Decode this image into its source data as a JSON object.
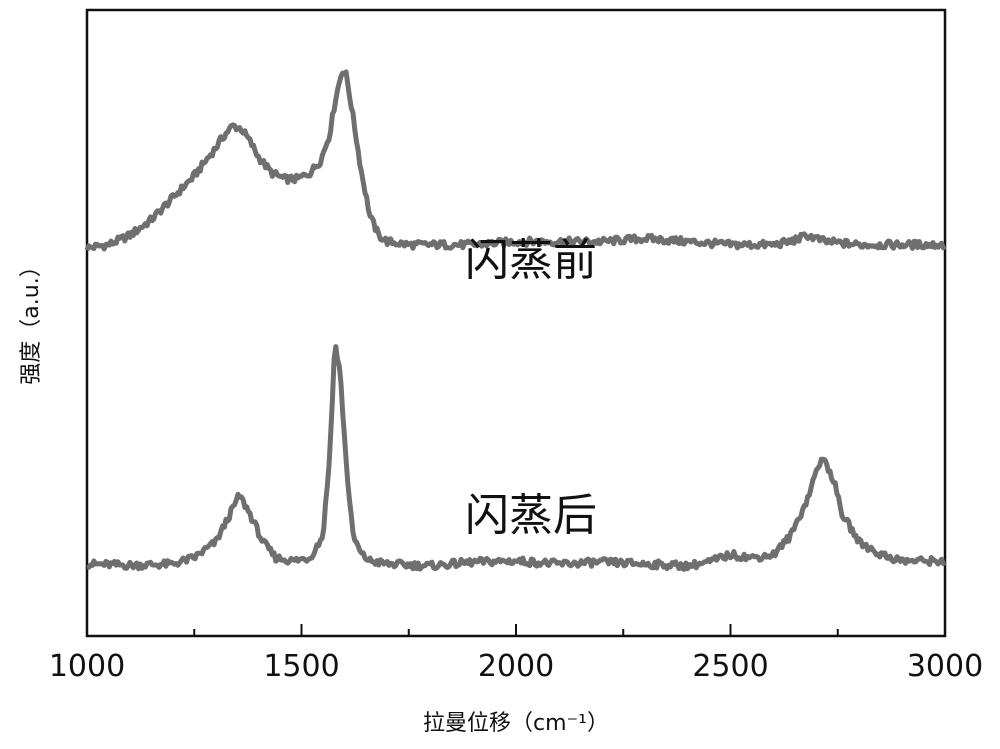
{
  "chart_data": {
    "type": "line",
    "xlabel": "拉曼位移（cm⁻¹）",
    "ylabel": "强度（a.u.）",
    "xlim": [
      1000,
      3000
    ],
    "ylim": [
      0,
      1
    ],
    "x_ticks": [
      1000,
      1500,
      2000,
      2500,
      3000
    ],
    "x_ticks_minor": [
      1250,
      1750,
      2250,
      2750
    ],
    "grid": false,
    "series": [
      {
        "name": "闪蒸前",
        "color": "#6f6f6f",
        "x": [
          1000,
          1050,
          1100,
          1150,
          1200,
          1250,
          1300,
          1320,
          1340,
          1360,
          1380,
          1400,
          1430,
          1460,
          1490,
          1520,
          1545,
          1565,
          1580,
          1595,
          1605,
          1620,
          1640,
          1660,
          1680,
          1700,
          1750,
          1800,
          1900,
          2000,
          2100,
          2200,
          2300,
          2400,
          2500,
          2600,
          2640,
          2680,
          2720,
          2800,
          2900,
          3000
        ],
        "y": [
          0.62,
          0.625,
          0.64,
          0.665,
          0.7,
          0.735,
          0.78,
          0.8,
          0.815,
          0.81,
          0.79,
          0.765,
          0.74,
          0.73,
          0.73,
          0.74,
          0.76,
          0.8,
          0.86,
          0.905,
          0.895,
          0.83,
          0.74,
          0.67,
          0.64,
          0.63,
          0.625,
          0.625,
          0.625,
          0.63,
          0.63,
          0.63,
          0.635,
          0.63,
          0.625,
          0.625,
          0.63,
          0.64,
          0.63,
          0.625,
          0.625,
          0.625
        ]
      },
      {
        "name": "闪蒸后",
        "color": "#6f6f6f",
        "x": [
          1000,
          1100,
          1200,
          1250,
          1300,
          1330,
          1355,
          1380,
          1410,
          1440,
          1480,
          1520,
          1550,
          1565,
          1578,
          1590,
          1605,
          1620,
          1640,
          1660,
          1700,
          1800,
          1900,
          2000,
          2100,
          2200,
          2300,
          2400,
          2450,
          2500,
          2550,
          2600,
          2640,
          2680,
          2705,
          2720,
          2740,
          2760,
          2800,
          2850,
          2900,
          3000
        ],
        "y": [
          0.115,
          0.113,
          0.115,
          0.125,
          0.15,
          0.19,
          0.225,
          0.195,
          0.15,
          0.125,
          0.12,
          0.125,
          0.16,
          0.28,
          0.47,
          0.42,
          0.27,
          0.16,
          0.13,
          0.12,
          0.115,
          0.112,
          0.118,
          0.12,
          0.115,
          0.118,
          0.115,
          0.112,
          0.118,
          0.13,
          0.125,
          0.13,
          0.16,
          0.22,
          0.275,
          0.28,
          0.25,
          0.195,
          0.15,
          0.13,
          0.12,
          0.12
        ]
      }
    ]
  }
}
